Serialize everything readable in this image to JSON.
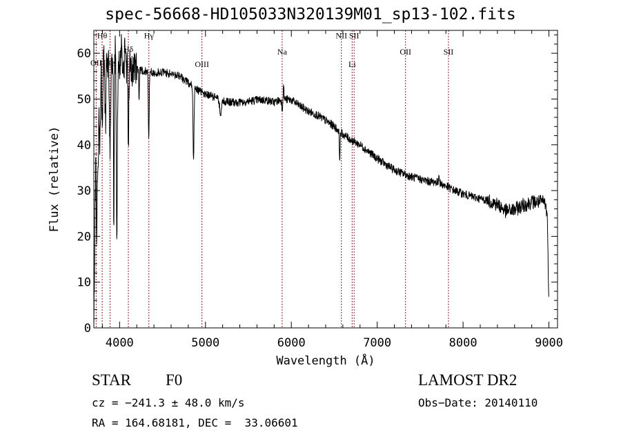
{
  "page": {
    "title": "spec-56668-HD105033N320139M01_sp13-102.fits",
    "object_class": "STAR",
    "subclass": "F0",
    "survey": "LAMOST DR2",
    "cz": "cz = −241.3 ± 48.0 km/s",
    "obs_date": "Obs−Date: 20140110",
    "radec": "RA = 164.68181, DEC =  33.06601"
  },
  "chart_data": {
    "type": "line",
    "title": "spec-56668-HD105033N320139M01_sp13-102.fits",
    "xlabel": "Wavelength (Å)",
    "ylabel": "Flux (relative)",
    "xlim": [
      3700,
      9100
    ],
    "ylim": [
      0,
      65
    ],
    "xticks": [
      4000,
      5000,
      6000,
      7000,
      8000,
      9000
    ],
    "yticks": [
      0,
      10,
      20,
      30,
      40,
      50,
      60
    ],
    "grid": false,
    "line_color": "#000000",
    "marker_color": "#8b1a1a",
    "lines": [
      {
        "label": "Hθ",
        "wavelength": 3797,
        "label_flux": 63.3
      },
      {
        "label": "OII",
        "wavelength": 3727,
        "label_flux": 57.3
      },
      {
        "label": "He",
        "wavelength": 3889,
        "label_flux": 57.3
      },
      {
        "label": "Hδ",
        "wavelength": 4102,
        "label_flux": 60.3
      },
      {
        "label": "Hγ",
        "wavelength": 4341,
        "label_flux": 63.3
      },
      {
        "label": "OIII",
        "wavelength": 4959,
        "label_flux": 57.0
      },
      {
        "label": "Na",
        "wavelength": 5893,
        "label_flux": 59.7
      },
      {
        "label": "NII",
        "wavelength": 6583,
        "label_flux": 63.3
      },
      {
        "label": "Li",
        "wavelength": 6708,
        "label_flux": 57.0
      },
      {
        "label": "SII",
        "wavelength": 6731,
        "label_flux": 63.3
      },
      {
        "label": "OII",
        "wavelength": 7330,
        "label_flux": 59.7
      },
      {
        "label": "SII",
        "wavelength": 7830,
        "label_flux": 59.7
      }
    ],
    "continuum": [
      [
        3700,
        0
      ],
      [
        3712,
        22
      ],
      [
        3725,
        42
      ],
      [
        3745,
        52
      ],
      [
        3770,
        56
      ],
      [
        3800,
        58
      ],
      [
        3850,
        58
      ],
      [
        3900,
        57.5
      ],
      [
        3950,
        57.5
      ],
      [
        4000,
        57.5
      ],
      [
        4050,
        57.5
      ],
      [
        4100,
        57
      ],
      [
        4200,
        56.5
      ],
      [
        4300,
        56
      ],
      [
        4400,
        55.8
      ],
      [
        4500,
        55.8
      ],
      [
        4600,
        55.5
      ],
      [
        4700,
        55
      ],
      [
        4800,
        53.5
      ],
      [
        4900,
        52
      ],
      [
        5000,
        51
      ],
      [
        5100,
        50.5
      ],
      [
        5200,
        49.5
      ],
      [
        5300,
        49.3
      ],
      [
        5400,
        49.3
      ],
      [
        5500,
        49.5
      ],
      [
        5600,
        49.8
      ],
      [
        5700,
        49.8
      ],
      [
        5800,
        49.3
      ],
      [
        5900,
        50
      ],
      [
        6000,
        49.8
      ],
      [
        6100,
        48.5
      ],
      [
        6200,
        47.3
      ],
      [
        6300,
        46.5
      ],
      [
        6400,
        45.3
      ],
      [
        6500,
        44
      ],
      [
        6600,
        42.3
      ],
      [
        6700,
        41
      ],
      [
        6800,
        40
      ],
      [
        6900,
        38.5
      ],
      [
        7000,
        37
      ],
      [
        7100,
        35.7
      ],
      [
        7200,
        34.5
      ],
      [
        7300,
        33.7
      ],
      [
        7400,
        33
      ],
      [
        7500,
        32.5
      ],
      [
        7600,
        32
      ],
      [
        7700,
        31.8
      ],
      [
        7800,
        31
      ],
      [
        7900,
        30
      ],
      [
        8000,
        29.3
      ],
      [
        8100,
        28.7
      ],
      [
        8200,
        28.2
      ],
      [
        8300,
        27.8
      ],
      [
        8400,
        27
      ],
      [
        8500,
        25.5
      ],
      [
        8600,
        25.8
      ],
      [
        8700,
        26.8
      ],
      [
        8800,
        27.5
      ],
      [
        8900,
        27.5
      ],
      [
        8950,
        27.5
      ],
      [
        8980,
        25
      ],
      [
        9000,
        5
      ]
    ],
    "absorption_features": [
      {
        "wavelength": 3734,
        "depth": 26,
        "width": 8
      },
      {
        "wavelength": 3750,
        "depth": 20,
        "width": 8
      },
      {
        "wavelength": 3771,
        "depth": 16,
        "width": 8
      },
      {
        "wavelength": 3798,
        "depth": 14,
        "width": 8
      },
      {
        "wavelength": 3835,
        "depth": 14,
        "width": 9
      },
      {
        "wavelength": 3889,
        "depth": 18,
        "width": 10
      },
      {
        "wavelength": 3933,
        "depth": 34,
        "width": 6
      },
      {
        "wavelength": 3968,
        "depth": 39,
        "width": 8
      },
      {
        "wavelength": 4102,
        "depth": 16,
        "width": 7
      },
      {
        "wavelength": 4227,
        "depth": 7,
        "width": 5
      },
      {
        "wavelength": 4340,
        "depth": 15,
        "width": 7
      },
      {
        "wavelength": 4861,
        "depth": 16,
        "width": 8
      },
      {
        "wavelength": 5175,
        "depth": 3,
        "width": 14
      },
      {
        "wavelength": 5893,
        "depth": 2,
        "width": 8
      },
      {
        "wavelength": 6563,
        "depth": 6,
        "width": 6
      }
    ],
    "emission_features": [
      {
        "wavelength": 3950,
        "height": 6,
        "width": 4
      },
      {
        "wavelength": 4020,
        "height": 6,
        "width": 4
      },
      {
        "wavelength": 4060,
        "height": 5,
        "width": 4
      },
      {
        "wavelength": 5910,
        "height": 3,
        "width": 6
      },
      {
        "wavelength": 7720,
        "height": 2.5,
        "width": 5
      }
    ]
  }
}
